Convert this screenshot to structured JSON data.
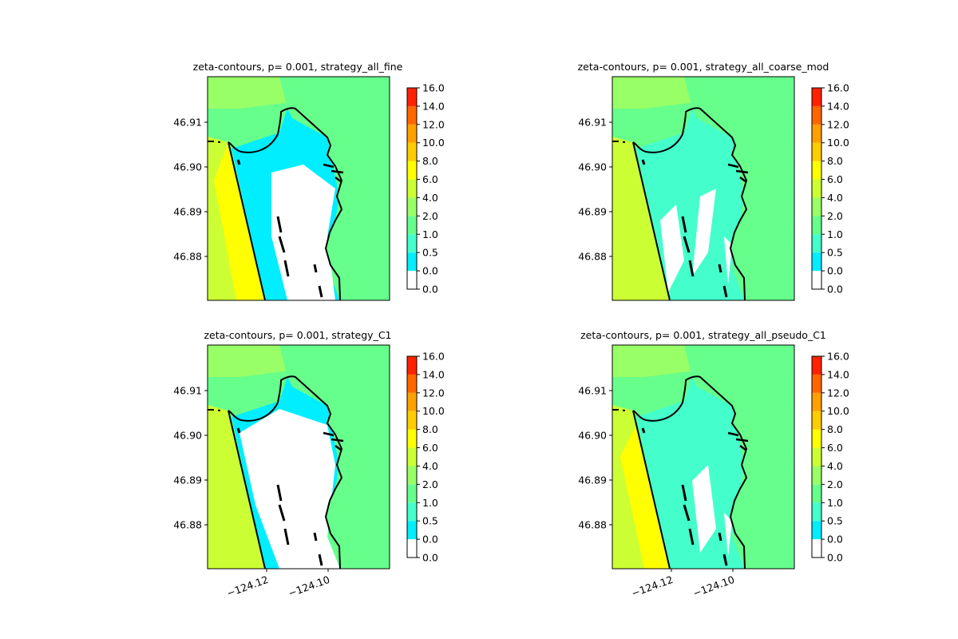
{
  "chart_data": [
    {
      "type": "heatmap",
      "title": "zeta-contours, p= 0.001, strategy_all_fine",
      "ytick_labels": [
        "46.91",
        "46.90",
        "46.89",
        "46.88"
      ],
      "xtick_labels": [],
      "colorbar": {
        "tick_labels": [
          "0.0",
          "0.0",
          "0.5",
          "1.0",
          "2.0",
          "4.0",
          "6.0",
          "8.0",
          "10.0",
          "12.0",
          "14.0",
          "16.0"
        ],
        "bounds": [
          0.0,
          0.0,
          0.5,
          1.0,
          2.0,
          4.0,
          6.0,
          8.0,
          10.0,
          12.0,
          14.0,
          16.0
        ]
      }
    },
    {
      "type": "heatmap",
      "title": "zeta-contours, p= 0.001, strategy_all_coarse_mod",
      "ytick_labels": [
        "46.91",
        "46.90",
        "46.89",
        "46.88"
      ],
      "xtick_labels": [],
      "colorbar": {
        "tick_labels": [
          "0.0",
          "0.0",
          "0.5",
          "1.0",
          "2.0",
          "4.0",
          "6.0",
          "8.0",
          "10.0",
          "12.0",
          "14.0",
          "16.0"
        ],
        "bounds": [
          0.0,
          0.0,
          0.5,
          1.0,
          2.0,
          4.0,
          6.0,
          8.0,
          10.0,
          12.0,
          14.0,
          16.0
        ]
      }
    },
    {
      "type": "heatmap",
      "title": "zeta-contours, p= 0.001, strategy_C1",
      "ytick_labels": [
        "46.91",
        "46.90",
        "46.89",
        "46.88"
      ],
      "xtick_labels": [
        "−124.12",
        "−124.10"
      ],
      "colorbar": {
        "tick_labels": [
          "0.0",
          "0.0",
          "0.5",
          "1.0",
          "2.0",
          "4.0",
          "6.0",
          "8.0",
          "10.0",
          "12.0",
          "14.0",
          "16.0"
        ],
        "bounds": [
          0.0,
          0.0,
          0.5,
          1.0,
          2.0,
          4.0,
          6.0,
          8.0,
          10.0,
          12.0,
          14.0,
          16.0
        ]
      }
    },
    {
      "type": "heatmap",
      "title": "zeta-contours, p= 0.001, strategy_all_pseudo_C1",
      "ytick_labels": [
        "46.91",
        "46.90",
        "46.89",
        "46.88"
      ],
      "xtick_labels": [
        "−124.12",
        "−124.10"
      ],
      "colorbar": {
        "tick_labels": [
          "0.0",
          "0.0",
          "0.5",
          "1.0",
          "2.0",
          "4.0",
          "6.0",
          "8.0",
          "10.0",
          "12.0",
          "14.0",
          "16.0"
        ],
        "bounds": [
          0.0,
          0.0,
          0.5,
          1.0,
          2.0,
          4.0,
          6.0,
          8.0,
          10.0,
          12.0,
          14.0,
          16.0
        ]
      }
    }
  ],
  "colors": {
    "levels": [
      "#ffffff",
      "#00eeff",
      "#44ffcc",
      "#66ff8c",
      "#99ff66",
      "#ccff33",
      "#ffff00",
      "#ffcc00",
      "#ffa000",
      "#ff6600",
      "#ff2200"
    ],
    "coast": "#000000"
  }
}
